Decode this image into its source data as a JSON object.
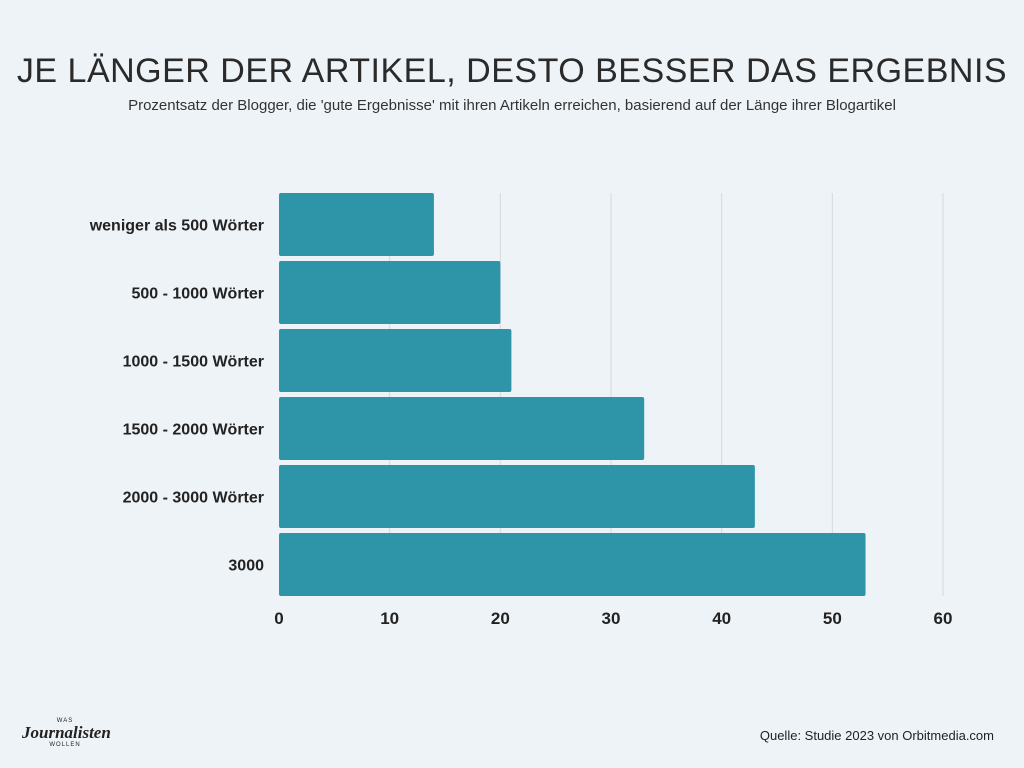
{
  "header": {
    "title": "JE LÄNGER DER ARTIKEL, DESTO BESSER DAS ERGEBNIS",
    "subtitle": "Prozentsatz der Blogger, die 'gute Ergebnisse' mit ihren Artikeln erreichen, basierend auf der Länge ihrer Blogartikel"
  },
  "chart_data": {
    "type": "bar",
    "orientation": "horizontal",
    "categories": [
      "weniger als 500 Wörter",
      "500 - 1000 Wörter",
      "1000 - 1500 Wörter",
      "1500 - 2000 Wörter",
      "2000 - 3000 Wörter",
      "3000"
    ],
    "values": [
      14,
      20,
      21,
      33,
      43,
      53
    ],
    "title": "JE LÄNGER DER ARTIKEL, DESTO BESSER DAS ERGEBNIS",
    "subtitle": "Prozentsatz der Blogger, die 'gute Ergebnisse' mit ihren Artikeln erreichen, basierend auf der Länge ihrer Blogartikel",
    "xlabel": "",
    "ylabel": "",
    "xlim": [
      0,
      60
    ],
    "xticks": [
      0,
      10,
      20,
      30,
      40,
      50,
      60
    ],
    "grid": "vertical",
    "bar_color": "#2e95a8",
    "grid_color": "#d3d9dd"
  },
  "footer": {
    "source": "Quelle: Studie 2023 von Orbitmedia.com",
    "logo_top": "WAS",
    "logo_main": "Journalisten",
    "logo_bottom": "WOLLEN"
  }
}
